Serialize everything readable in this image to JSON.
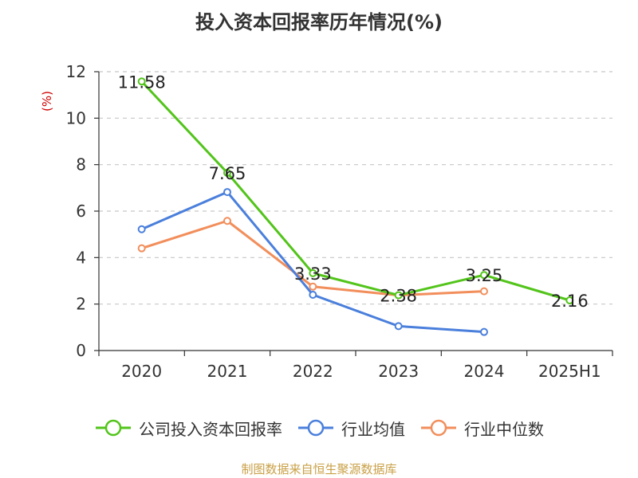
{
  "chart_data": {
    "type": "line",
    "title": "投入资本回报率历年情况(%)",
    "ylabel": "(%)",
    "xlabel": "",
    "categories": [
      "2020",
      "2021",
      "2022",
      "2023",
      "2024",
      "2025H1"
    ],
    "ylim": [
      0,
      12
    ],
    "yticks": [
      0,
      2,
      4,
      6,
      8,
      10,
      12
    ],
    "grid": true,
    "legend_position": "bottom",
    "series": [
      {
        "name": "公司投入资本回报率",
        "color": "#52c41a",
        "values": [
          11.58,
          7.65,
          3.33,
          2.38,
          3.25,
          2.16
        ],
        "labels": [
          "11.58",
          "7.65",
          "3.33",
          "2.38",
          "3.25",
          "2.16"
        ]
      },
      {
        "name": "行业均值",
        "color": "#4a7fdc",
        "values": [
          5.22,
          6.82,
          2.4,
          1.05,
          0.8,
          null
        ]
      },
      {
        "name": "行业中位数",
        "color": "#f28e5b",
        "values": [
          4.4,
          5.58,
          2.75,
          2.38,
          2.55,
          null
        ]
      }
    ]
  },
  "source_text": "制图数据来自恒生聚源数据库"
}
